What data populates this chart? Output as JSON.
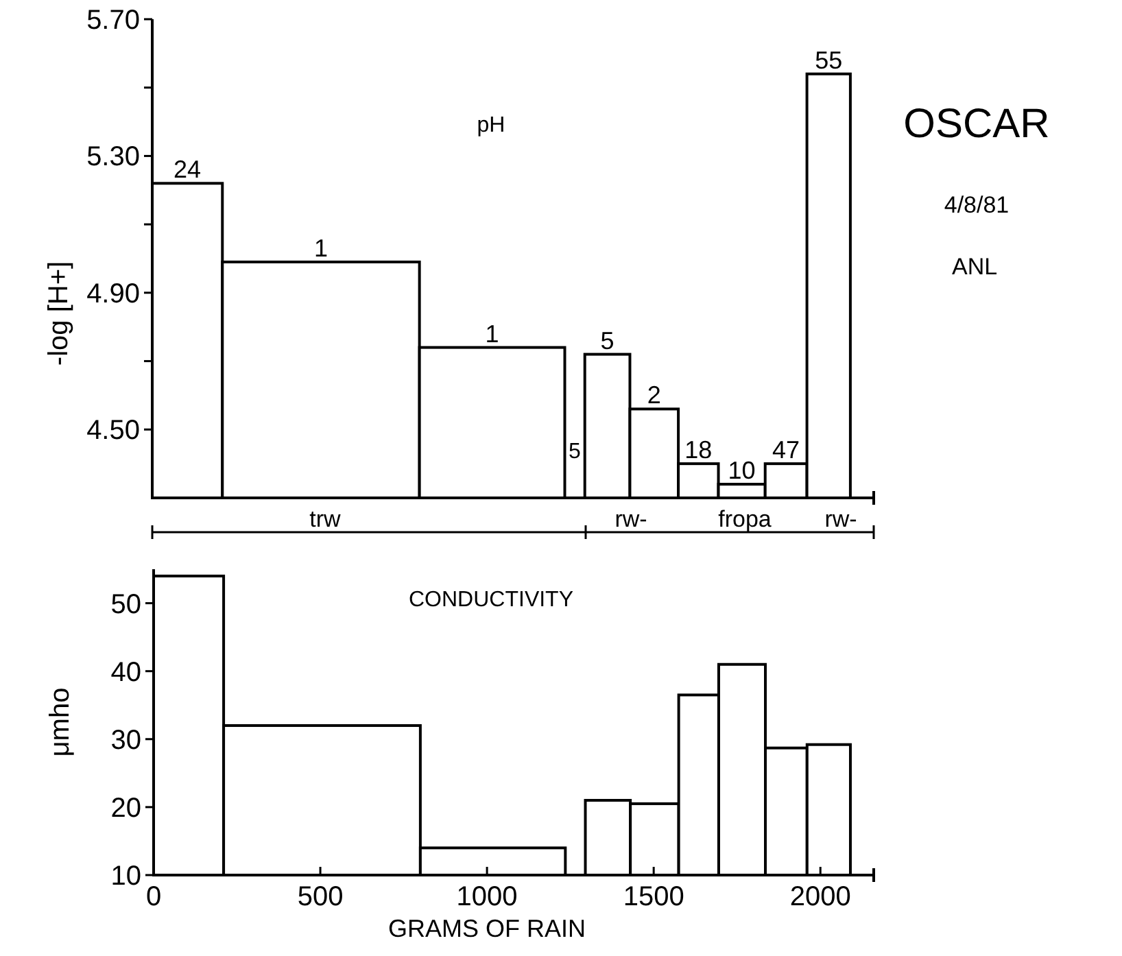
{
  "chart_data": [
    {
      "type": "histogram",
      "title": "pH",
      "ylabel": "-log [H+]",
      "bins": [
        0,
        210,
        800,
        1235,
        1295,
        1430,
        1575,
        1695,
        1835,
        1960,
        2090
      ],
      "values": [
        5.22,
        4.99,
        4.74,
        null,
        4.72,
        4.56,
        4.4,
        4.34,
        4.4,
        5.54
      ],
      "color": "#000000",
      "xlim": [
        0,
        2160
      ],
      "ylim": [
        4.3,
        5.7
      ],
      "yticks": [
        {
          "value": 4.5,
          "label": "4.50"
        },
        {
          "value": 4.7,
          "label": null
        },
        {
          "value": 4.9,
          "label": "4.90"
        },
        {
          "value": 5.1,
          "label": null
        },
        {
          "value": 5.3,
          "label": "5.30"
        },
        {
          "value": 5.5,
          "label": null
        },
        {
          "value": 5.7,
          "label": "5.70"
        }
      ],
      "tick_labels": "y",
      "annotations": [
        {
          "text": "24",
          "x": 105,
          "y": 5.22
        },
        {
          "text": "1",
          "x": 505,
          "y": 4.99
        },
        {
          "text": "1",
          "x": 1017.5,
          "y": 4.74
        },
        {
          "text": "5",
          "x": 1362.5,
          "y": 4.72
        },
        {
          "text": "2",
          "x": 1502.5,
          "y": 4.56
        },
        {
          "text": "18",
          "x": 1635,
          "y": 4.4
        },
        {
          "text": "10",
          "x": 1765,
          "y": 4.34
        },
        {
          "text": "47",
          "x": 1897.5,
          "y": 4.4
        },
        {
          "text": "55",
          "x": 2025,
          "y": 5.54
        },
        "5",
        "trw",
        "rw-",
        "fropa",
        "rw-",
        "OSCAR",
        "4/8/81",
        "ANL"
      ]
    },
    {
      "type": "histogram",
      "title": "CONDUCTIVITY",
      "xlabel": "GRAMS OF RAIN",
      "ylabel": "μmho",
      "bins": [
        0,
        210,
        800,
        1235,
        1295,
        1430,
        1575,
        1695,
        1835,
        1960,
        2090
      ],
      "values": [
        54,
        32,
        14,
        null,
        21,
        20.5,
        36.5,
        41,
        28.7,
        29.2
      ],
      "color": "#000000",
      "xlim": [
        0,
        2160
      ],
      "ylim": [
        10,
        55
      ],
      "xticks": [
        0,
        500,
        1000,
        1500,
        2000
      ],
      "yticks": [
        10,
        20,
        30,
        40,
        50
      ]
    }
  ]
}
